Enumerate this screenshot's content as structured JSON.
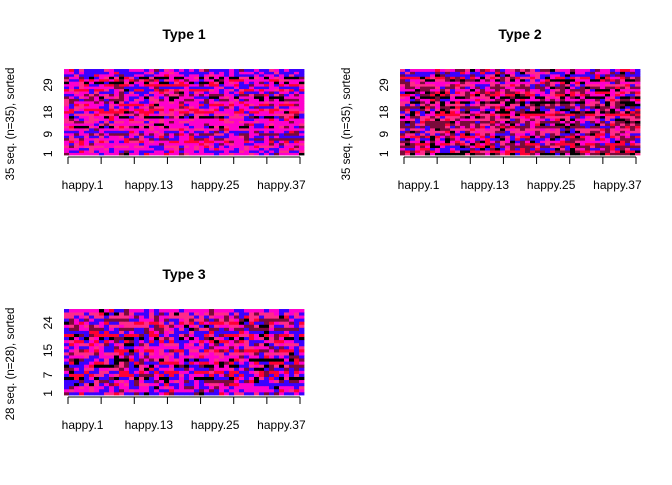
{
  "figure": {
    "background": "#ffffff"
  },
  "palette": {
    "description_colors": [
      "#000000",
      "#7a0a3a",
      "#ff2a8a",
      "#ff00cc",
      "#3a00ff",
      "#ff0033",
      "#1a1a60"
    ],
    "tick_color": "#000000"
  },
  "chart_data": [
    {
      "type": "heatmap",
      "title": "Type 1",
      "xlabel": "",
      "ylabel": "35 seq. (n=35), sorted",
      "n_rows": 35,
      "n_cols": 48,
      "x_tick_labels": [
        "happy.1",
        "happy.13",
        "happy.25",
        "happy.37"
      ],
      "y_tick_labels": [
        "1",
        "9",
        "18",
        "29"
      ],
      "y_tick_rows": [
        1,
        9,
        18,
        29
      ],
      "color_states": [
        "#ff00cc",
        "#3a00ff",
        "#ff2a8a",
        "#7a0a3a",
        "#ff0033",
        "#000000"
      ],
      "dominant_state": "#ff00cc"
    },
    {
      "type": "heatmap",
      "title": "Type 2",
      "xlabel": "",
      "ylabel": "35 seq. (n=35), sorted",
      "n_rows": 35,
      "n_cols": 48,
      "x_tick_labels": [
        "happy.1",
        "happy.13",
        "happy.25",
        "happy.37"
      ],
      "y_tick_labels": [
        "1",
        "9",
        "18",
        "29"
      ],
      "y_tick_rows": [
        1,
        9,
        18,
        29
      ],
      "color_states": [
        "#ff00cc",
        "#3a00ff",
        "#ff2a8a",
        "#7a0a3a",
        "#ff0033",
        "#000000"
      ],
      "dominant_state": "#7a0a3a"
    },
    {
      "type": "heatmap",
      "title": "Type 3",
      "xlabel": "",
      "ylabel": "28 seq. (n=28), sorted",
      "n_rows": 28,
      "n_cols": 48,
      "x_tick_labels": [
        "happy.1",
        "happy.13",
        "happy.25",
        "happy.37"
      ],
      "y_tick_labels": [
        "1",
        "7",
        "15",
        "24"
      ],
      "y_tick_rows": [
        1,
        7,
        15,
        24
      ],
      "color_states": [
        "#ff00cc",
        "#3a00ff",
        "#ff2a8a",
        "#7a0a3a",
        "#ff0033",
        "#000000"
      ],
      "dominant_state": "#3a00ff"
    }
  ]
}
